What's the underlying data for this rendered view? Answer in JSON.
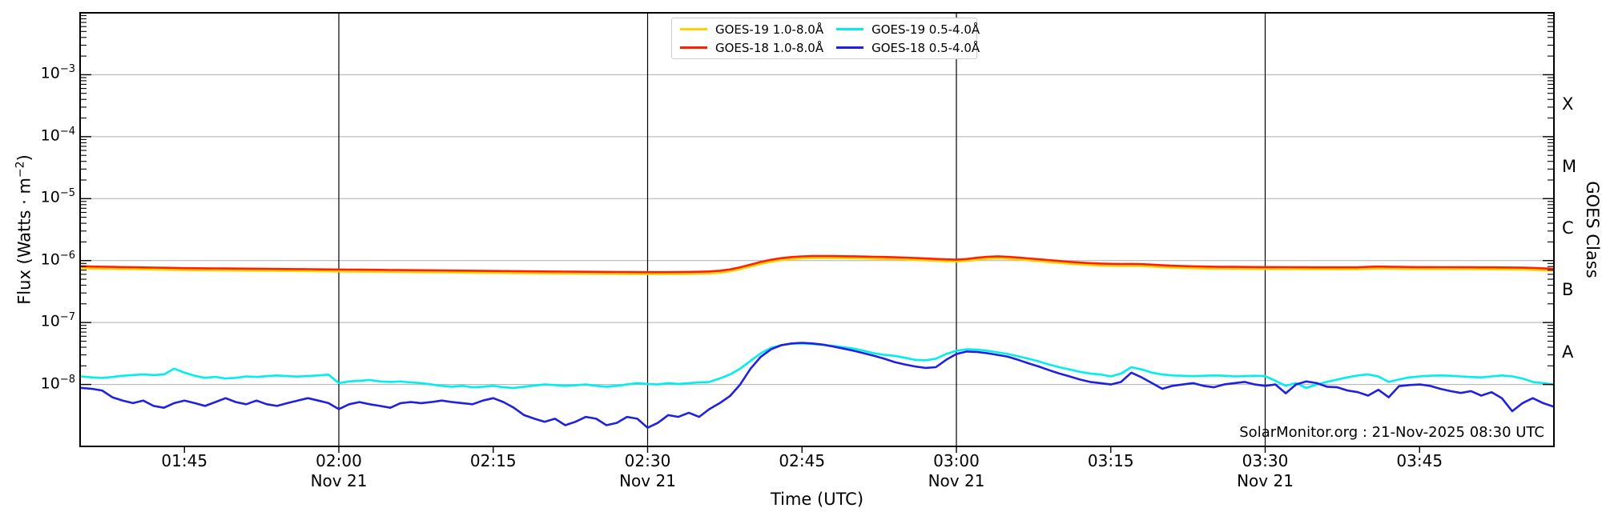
{
  "figure": {
    "ylabel_pre": "Flux (Watts · m",
    "ylabel_sup": "−2",
    "ylabel_post": ")",
    "right_axis_label": "GOES Class",
    "xlabel": "Time (UTC)",
    "watermark": "SolarMonitor.org : 21-Nov-2025 08:30 UTC",
    "colors": {
      "goes19_long": "#FFD200",
      "goes18_long": "#FF2000",
      "goes19_short": "#00EEEE",
      "goes18_short": "#2020E0",
      "gridline": "#AFAFAF",
      "frame": "#000000"
    }
  },
  "chart_data": {
    "type": "line",
    "title": "",
    "xlabel": "Time (UTC)",
    "ylabel": "Flux (Watts · m−2)",
    "ylabel_right": "GOES Class",
    "date": "21-Nov-2025",
    "watermark": "SolarMonitor.org : 21-Nov-2025 08:30 UTC",
    "legend_position": "top-center",
    "grid": true,
    "y_scale": "log",
    "y_range": [
      1e-09,
      0.01
    ],
    "y_tick_exponents": [
      -3,
      -4,
      -5,
      -6,
      -7,
      -8
    ],
    "y_gridline_exponents": [
      -3,
      -4,
      -5,
      -6,
      -7,
      -8
    ],
    "goes_classes": [
      {
        "label": "X",
        "center_exponent": -3.5
      },
      {
        "label": "M",
        "center_exponent": -4.5
      },
      {
        "label": "C",
        "center_exponent": -5.5
      },
      {
        "label": "B",
        "center_exponent": -6.5
      },
      {
        "label": "A",
        "center_exponent": -7.5
      }
    ],
    "x_unit": "minutes after 00:00 UTC, 21-Nov-2025",
    "x_range_min": [
      95,
      238
    ],
    "x_start_min": 95,
    "x_step_min": 1,
    "x_time_ticks": [
      {
        "min": 105,
        "label": "01:45"
      },
      {
        "min": 120,
        "label": "02:00"
      },
      {
        "min": 135,
        "label": "02:15"
      },
      {
        "min": 150,
        "label": "02:30"
      },
      {
        "min": 165,
        "label": "02:45"
      },
      {
        "min": 180,
        "label": "03:00"
      },
      {
        "min": 195,
        "label": "03:15"
      },
      {
        "min": 210,
        "label": "03:30"
      },
      {
        "min": 225,
        "label": "03:45"
      }
    ],
    "x_date_label": "Nov 21",
    "x_date_label_mins": [
      120,
      150,
      180,
      210
    ],
    "x_gridline_mins": [
      120,
      150,
      180,
      210
    ],
    "flux_unit": "W m−2",
    "value_scale": 1e-09,
    "series": [
      {
        "name": "GOES-19 1.0-8.0Å",
        "color": "#FFD200",
        "values": [
          753,
          744,
          739,
          735,
          730,
          725,
          721,
          716,
          711,
          707,
          702,
          699,
          698,
          696,
          693,
          690,
          688,
          686,
          684,
          681,
          679,
          677,
          674,
          671,
          670,
          668,
          665,
          662,
          660,
          658,
          656,
          653,
          651,
          649,
          646,
          644,
          642,
          640,
          637,
          634,
          632,
          631,
          628,
          625,
          623,
          621,
          618,
          617,
          616,
          614,
          612,
          610,
          608,
          606,
          605,
          605,
          605,
          605,
          606,
          609,
          614,
          621,
          637,
          670,
          725,
          800,
          884,
          958,
          1018,
          1060,
          1086,
          1097,
          1099,
          1097,
          1094,
          1088,
          1081,
          1071,
          1062,
          1051,
          1038,
          1023,
          1006,
          988,
          972,
          963,
          986,
          1032,
          1070,
          1088,
          1070,
          1042,
          1009,
          977,
          944,
          916,
          888,
          865,
          846,
          832,
          823,
          818,
          820,
          815,
          800,
          781,
          767,
          758,
          751,
          744,
          739,
          737,
          735,
          733,
          731,
          730,
          728,
          726,
          725,
          724,
          723,
          723,
          722,
          722,
          723,
          735,
          744,
          740,
          735,
          731,
          729,
          728,
          727,
          726,
          725,
          725,
          723,
          722,
          720,
          718,
          714,
          709,
          698,
          684
        ]
      },
      {
        "name": "GOES-18 1.0-8.0Å",
        "color": "#FF2000",
        "values": [
          810,
          800,
          795,
          790,
          785,
          780,
          775,
          770,
          765,
          760,
          755,
          752,
          750,
          748,
          745,
          742,
          740,
          738,
          735,
          732,
          730,
          728,
          725,
          722,
          720,
          718,
          715,
          712,
          710,
          708,
          705,
          702,
          700,
          698,
          695,
          692,
          690,
          688,
          685,
          682,
          680,
          678,
          675,
          672,
          670,
          668,
          665,
          663,
          662,
          660,
          658,
          656,
          654,
          652,
          650,
          650,
          650,
          650,
          652,
          655,
          660,
          668,
          685,
          720,
          780,
          860,
          950,
          1030,
          1095,
          1140,
          1168,
          1180,
          1182,
          1180,
          1176,
          1170,
          1162,
          1152,
          1142,
          1130,
          1116,
          1100,
          1082,
          1062,
          1045,
          1035,
          1060,
          1110,
          1150,
          1170,
          1150,
          1120,
          1085,
          1050,
          1015,
          985,
          955,
          930,
          910,
          895,
          885,
          880,
          882,
          876,
          860,
          840,
          825,
          815,
          808,
          800,
          795,
          792,
          790,
          788,
          786,
          785,
          783,
          781,
          780,
          779,
          778,
          777,
          776,
          776,
          778,
          790,
          800,
          796,
          790,
          786,
          784,
          783,
          782,
          781,
          780,
          780,
          778,
          776,
          774,
          772,
          768,
          762,
          750,
          735
        ]
      },
      {
        "name": "GOES-19 0.5-4.0Å",
        "color": "#00EEEE",
        "values": [
          13.5,
          13.0,
          12.7,
          13.2,
          13.8,
          14.2,
          14.5,
          14.2,
          14.5,
          18.0,
          15.5,
          13.8,
          12.8,
          13.3,
          12.5,
          12.8,
          13.5,
          13.2,
          13.6,
          14.0,
          13.6,
          13.4,
          13.7,
          14.0,
          14.4,
          10.5,
          11.2,
          11.5,
          11.8,
          11.2,
          11.0,
          11.2,
          10.8,
          10.5,
          10.0,
          9.5,
          9.2,
          9.5,
          9.0,
          9.2,
          9.5,
          9.0,
          8.8,
          9.2,
          9.6,
          10.0,
          9.8,
          9.5,
          9.7,
          10.0,
          9.5,
          9.2,
          9.5,
          10.0,
          10.5,
          10.2,
          10.0,
          10.5,
          10.2,
          10.5,
          10.8,
          11.0,
          12.5,
          14.5,
          18.0,
          24.0,
          32.0,
          39.0,
          43.0,
          45.5,
          46.0,
          45.0,
          43.5,
          42.0,
          40.0,
          38.0,
          35.0,
          32.0,
          30.0,
          29.0,
          27.0,
          25.0,
          24.5,
          26.0,
          31.0,
          35.0,
          37.0,
          36.5,
          35.0,
          33.0,
          31.0,
          28.5,
          26.0,
          23.5,
          21.0,
          19.0,
          17.5,
          16.0,
          15.0,
          14.5,
          13.5,
          15.0,
          19.0,
          17.5,
          15.5,
          14.5,
          14.0,
          13.8,
          13.6,
          13.8,
          14.0,
          13.8,
          13.5,
          13.6,
          13.8,
          13.6,
          11.5,
          9.5,
          10.5,
          8.8,
          10.0,
          11.0,
          12.0,
          13.0,
          14.0,
          14.5,
          13.5,
          11.0,
          12.0,
          13.0,
          13.5,
          13.8,
          14.0,
          13.8,
          13.5,
          13.2,
          13.0,
          13.5,
          14.0,
          13.5,
          12.5,
          11.0,
          10.5,
          10.0
        ]
      },
      {
        "name": "GOES-18 0.5-4.0Å",
        "color": "#2020E0",
        "values": [
          8.8,
          8.5,
          8.0,
          6.2,
          5.5,
          5.0,
          5.5,
          4.5,
          4.2,
          5.0,
          5.5,
          5.0,
          4.5,
          5.2,
          6.0,
          5.2,
          4.8,
          5.5,
          4.8,
          4.5,
          5.0,
          5.5,
          6.0,
          5.5,
          5.0,
          4.0,
          4.8,
          5.2,
          4.8,
          4.5,
          4.2,
          5.0,
          5.2,
          5.0,
          5.2,
          5.5,
          5.2,
          5.0,
          4.8,
          5.5,
          6.0,
          5.2,
          4.2,
          3.2,
          2.8,
          2.5,
          2.8,
          2.2,
          2.5,
          3.0,
          2.8,
          2.2,
          2.4,
          3.0,
          2.8,
          2.0,
          2.4,
          3.2,
          3.0,
          3.5,
          3.0,
          4.0,
          5.0,
          6.5,
          10.0,
          18.0,
          28.0,
          37.0,
          43.0,
          46.0,
          47.0,
          46.0,
          44.0,
          41.0,
          38.0,
          35.0,
          32.0,
          29.0,
          26.0,
          23.0,
          21.0,
          19.5,
          18.5,
          19.0,
          25.0,
          31.0,
          34.0,
          33.5,
          32.0,
          30.0,
          28.0,
          25.0,
          22.0,
          19.5,
          17.0,
          15.0,
          13.5,
          12.0,
          11.0,
          10.5,
          10.0,
          11.0,
          15.5,
          13.0,
          10.5,
          8.5,
          9.5,
          10.0,
          10.5,
          9.5,
          9.0,
          10.0,
          10.5,
          11.0,
          10.0,
          9.5,
          10.0,
          7.2,
          10.0,
          11.2,
          10.5,
          9.2,
          9.0,
          8.0,
          7.5,
          6.6,
          8.2,
          6.2,
          9.4,
          9.8,
          10.0,
          9.5,
          8.5,
          7.8,
          7.3,
          7.8,
          6.6,
          7.5,
          6.0,
          3.7,
          5.0,
          6.0,
          5.0,
          4.4
        ]
      }
    ]
  }
}
